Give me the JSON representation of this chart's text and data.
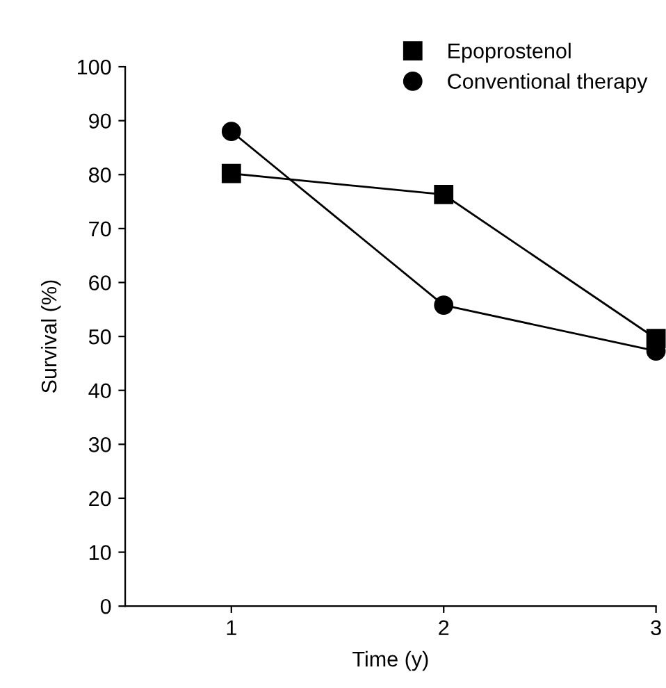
{
  "chart_data": {
    "type": "line",
    "xlabel": "Time (y)",
    "ylabel": "Survival (%)",
    "x": [
      1,
      2,
      3
    ],
    "series": [
      {
        "name": "Epoprostenol",
        "color": "#000000",
        "marker": "square",
        "values": [
          80.2,
          76.3,
          49.6
        ]
      },
      {
        "name": "Conventional therapy",
        "color": "#000000",
        "marker": "circle",
        "values": [
          88.0,
          55.8,
          47.3
        ]
      }
    ],
    "xlim": [
      0.5,
      3
    ],
    "xticks": [
      1,
      2,
      3
    ],
    "ylim": [
      0,
      100
    ],
    "yticks": [
      0,
      10,
      20,
      30,
      40,
      50,
      60,
      70,
      80,
      90,
      100
    ],
    "grid": false,
    "legend": "top right",
    "line_style": "solid"
  }
}
